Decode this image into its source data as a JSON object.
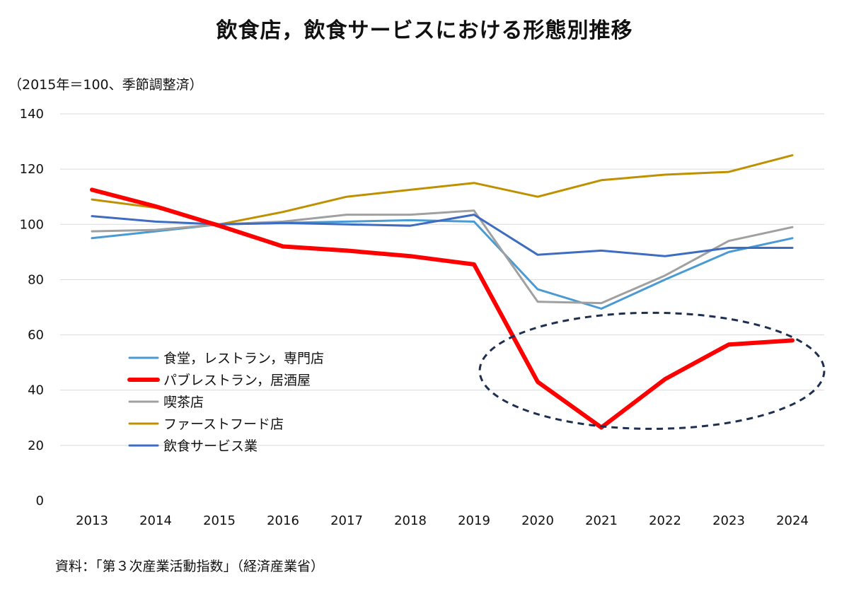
{
  "chart_data": {
    "type": "line",
    "title": "飲食店，飲食サービスにおける形態別推移",
    "unit_note": "（2015年＝100、季節調整済）",
    "source_note": "資料：「第３次産業活動指数」（経済産業省）",
    "x": [
      "2013",
      "2014",
      "2015",
      "2016",
      "2017",
      "2018",
      "2019",
      "2020",
      "2021",
      "2022",
      "2023",
      "2024"
    ],
    "ylim": [
      0,
      140
    ],
    "yticks": [
      0,
      20,
      40,
      60,
      80,
      100,
      120,
      140
    ],
    "grid": true,
    "legend_position": "left-middle",
    "series": [
      {
        "name": "食堂，レストラン，専門店",
        "color": "#4a9ad4",
        "width": 3,
        "values": [
          95.0,
          97.5,
          100.0,
          100.5,
          101.0,
          101.5,
          101.0,
          76.5,
          69.5,
          80.0,
          90.0,
          95.0
        ]
      },
      {
        "name": "パブレストラン，居酒屋",
        "color": "#ff0000",
        "width": 6,
        "values": [
          112.5,
          106.5,
          99.5,
          92.0,
          90.5,
          88.5,
          85.5,
          43.0,
          26.5,
          44.0,
          56.5,
          58.0
        ]
      },
      {
        "name": "喫茶店",
        "color": "#a0a0a0",
        "width": 3,
        "values": [
          97.5,
          98.0,
          100.0,
          101.0,
          103.5,
          103.5,
          105.0,
          72.0,
          71.5,
          81.5,
          94.0,
          99.0
        ]
      },
      {
        "name": "ファーストフード店",
        "color": "#bf9000",
        "width": 3,
        "values": [
          109.0,
          106.0,
          100.0,
          104.5,
          110.0,
          112.5,
          115.0,
          110.0,
          116.0,
          118.0,
          119.0,
          125.0
        ]
      },
      {
        "name": "飲食サービス業",
        "color": "#3d6cc0",
        "width": 3,
        "values": [
          103.0,
          101.0,
          100.0,
          100.5,
          100.0,
          99.5,
          103.5,
          89.0,
          90.5,
          88.5,
          91.5,
          91.5
        ]
      }
    ],
    "annotation": {
      "shape": "dashed-ellipse",
      "color": "#1f2f4f",
      "x_range": [
        "2019",
        "2024"
      ],
      "y_range": [
        26,
        68
      ]
    }
  }
}
